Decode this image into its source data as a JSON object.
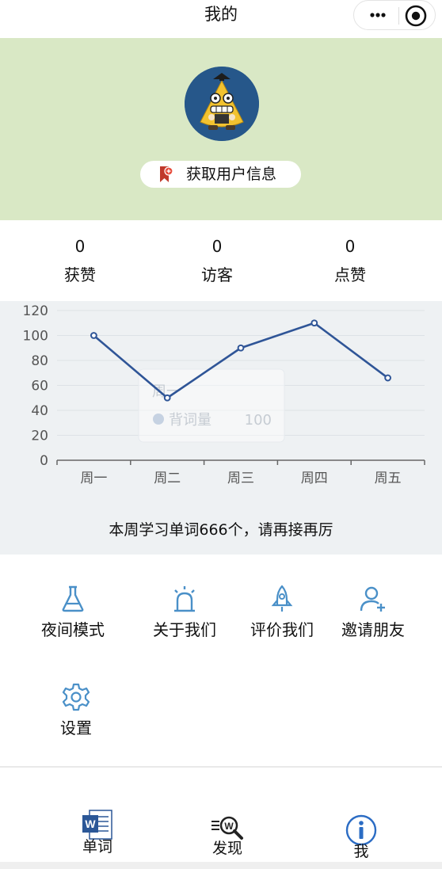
{
  "header": {
    "title": "我的",
    "more_icon": "more-dots-icon",
    "close_icon": "target-circle-icon"
  },
  "profile": {
    "avatar": "cartoon-avatar",
    "get_info_label": "获取用户信息",
    "get_info_icon": "bookmark-plus-icon",
    "background": "#d9e8c5"
  },
  "stats": [
    {
      "value": "0",
      "label": "获赞"
    },
    {
      "value": "0",
      "label": "访客"
    },
    {
      "value": "0",
      "label": "点赞"
    }
  ],
  "chart_data": {
    "type": "line",
    "categories": [
      "周一",
      "周二",
      "周三",
      "周四",
      "周五"
    ],
    "series": [
      {
        "name": "背词量",
        "values": [
          100,
          50,
          90,
          110,
          66
        ]
      }
    ],
    "ylim": [
      0,
      120
    ],
    "yticks": [
      0,
      20,
      40,
      60,
      80,
      100,
      120
    ],
    "grid": true,
    "line_color": "#2f5597",
    "tooltip": {
      "category": "周一",
      "series": "背词量",
      "value": "100"
    }
  },
  "chart_summary": "本周学习单词666个，请再接再厉",
  "menu": [
    {
      "label": "夜间模式",
      "icon": "flask-icon"
    },
    {
      "label": "关于我们",
      "icon": "alarm-light-icon"
    },
    {
      "label": "评价我们",
      "icon": "rocket-icon"
    },
    {
      "label": "邀请朋友",
      "icon": "add-user-icon"
    },
    {
      "label": "设置",
      "icon": "gear-icon"
    }
  ],
  "accent_color": "#4a90c8",
  "tabbar": [
    {
      "label": "单词",
      "icon": "word-document-icon"
    },
    {
      "label": "发现",
      "icon": "word-search-icon"
    },
    {
      "label": "我",
      "icon": "info-circle-icon"
    }
  ]
}
